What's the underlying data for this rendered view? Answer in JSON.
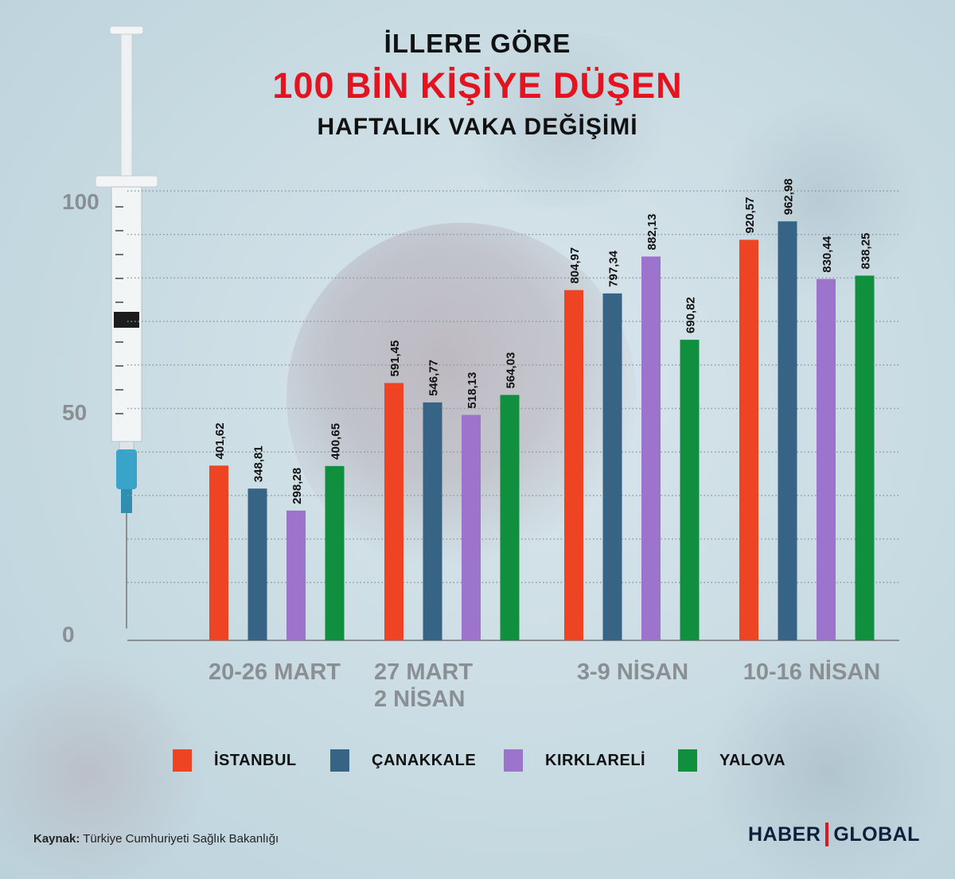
{
  "header": {
    "line1": "İLLERE GÖRE",
    "line2": "100 BİN KİŞİYE DÜŞEN",
    "line3": "HAFTALIK VAKA DEĞİŞİMİ"
  },
  "chart_data": {
    "type": "bar",
    "categories": [
      [
        "20-26 MART"
      ],
      [
        "27 MART",
        "2 NİSAN"
      ],
      [
        "3-9 NİSAN"
      ],
      [
        "10-16 NİSAN"
      ]
    ],
    "series": [
      {
        "name": "İSTANBUL",
        "color": "#ee4423",
        "values": [
          401.62,
          591.45,
          804.97,
          920.57
        ],
        "labels": [
          "401,62",
          "591,45",
          "804,97",
          "920,57"
        ]
      },
      {
        "name": "ÇANAKKALE",
        "color": "#376385",
        "values": [
          348.81,
          546.77,
          797.34,
          962.98
        ],
        "labels": [
          "348,81",
          "546,77",
          "797,34",
          "962,98"
        ]
      },
      {
        "name": "KIRKLARELİ",
        "color": "#9c74cc",
        "values": [
          298.28,
          518.13,
          882.13,
          830.44
        ],
        "labels": [
          "298,28",
          "518,13",
          "882,13",
          "830,44"
        ]
      },
      {
        "name": "YALOVA",
        "color": "#10903f",
        "values": [
          400.65,
          564.03,
          690.82,
          838.25
        ],
        "labels": [
          "400,65",
          "564,03",
          "690,82",
          "838,25"
        ]
      }
    ],
    "yticks": [
      "100",
      "50",
      "0"
    ],
    "grid": true
  },
  "footer": {
    "source_label": "Kaynak:",
    "source_text": "Türkiye Cumhuriyeti Sağlık Bakanlığı",
    "logo_left": "HABER",
    "logo_right": "GLOBAL"
  },
  "decor": {
    "image_elements": [
      "syringe-image",
      "coronavirus-background"
    ]
  }
}
